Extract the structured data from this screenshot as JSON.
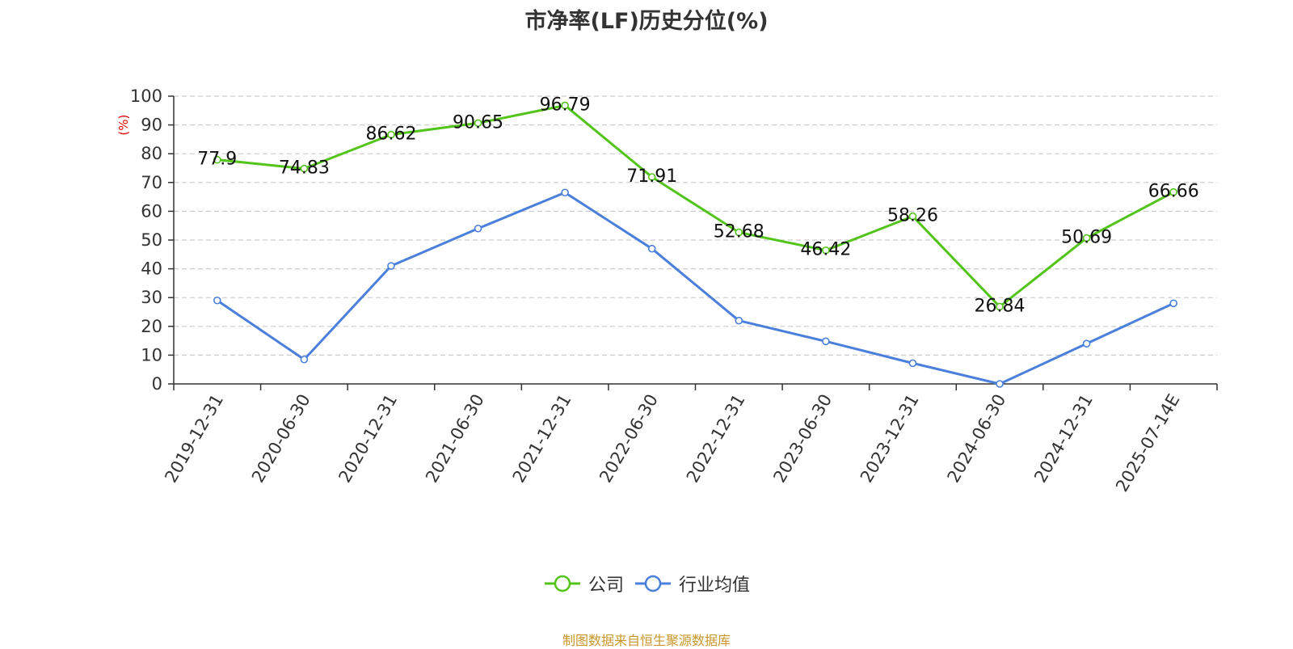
{
  "chart_data": {
    "type": "line",
    "title": "市净率(LF)历史分位(%)",
    "ylabel": "(%)",
    "ylim": [
      0,
      100
    ],
    "yticks": [
      0,
      10,
      20,
      30,
      40,
      50,
      60,
      70,
      80,
      90,
      100
    ],
    "grid": true,
    "legend_position": "bottom",
    "categories": [
      "2019-12-31",
      "2020-06-30",
      "2020-12-31",
      "2021-06-30",
      "2021-12-31",
      "2022-06-30",
      "2022-12-31",
      "2023-06-30",
      "2023-12-31",
      "2024-06-30",
      "2024-12-31",
      "2025-07-14E"
    ],
    "series": [
      {
        "name": "公司",
        "color": "#52c41a",
        "values": [
          77.9,
          74.83,
          86.62,
          90.65,
          96.79,
          71.91,
          52.68,
          46.42,
          58.26,
          26.84,
          50.69,
          66.66
        ],
        "labels": [
          "77.9",
          "74.83",
          "86.62",
          "90.65",
          "96.79",
          "71.91",
          "52.68",
          "46.42",
          "58.26",
          "26.84",
          "50.69",
          "66.66"
        ]
      },
      {
        "name": "行业均值",
        "color": "#4a7fdc",
        "values": [
          29,
          8.5,
          41,
          54,
          66.5,
          47,
          22,
          14.8,
          7.2,
          0,
          14,
          28
        ]
      }
    ]
  },
  "footer": {
    "source": "制图数据来自恒生聚源数据库"
  }
}
